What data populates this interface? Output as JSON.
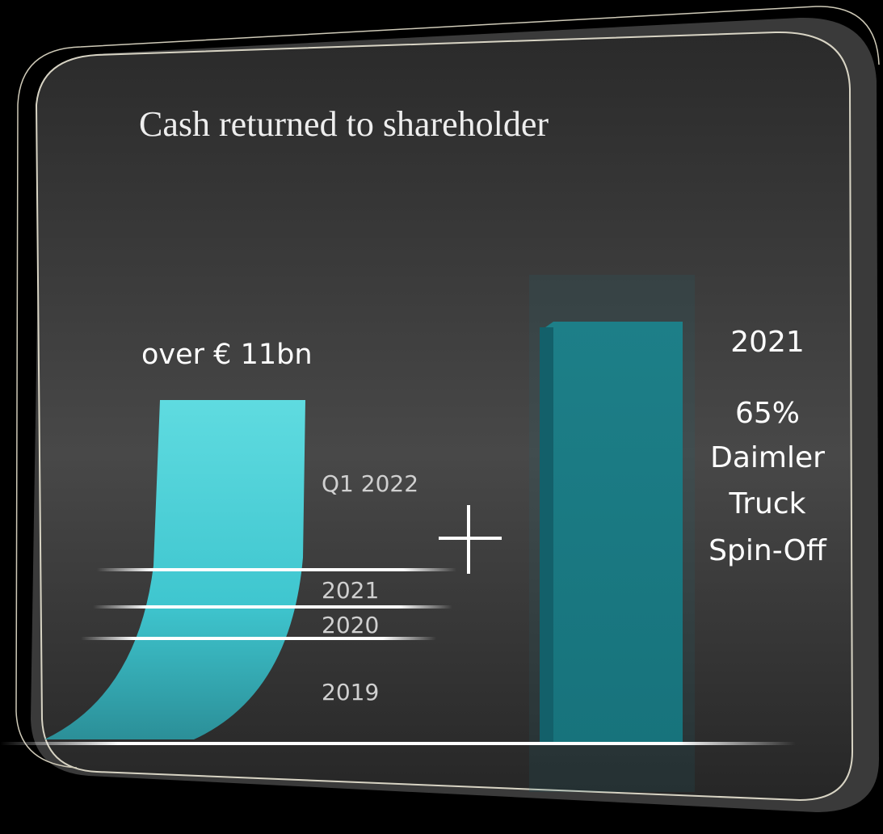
{
  "title": "Cash returned to shareholder",
  "total_label": "over € 11bn",
  "periods": [
    "Q1 2022",
    "2021",
    "2020",
    "2019"
  ],
  "spin_off": {
    "year": "2021",
    "lines": [
      "65%",
      "Daimler",
      "Truck",
      "Spin-Off"
    ]
  }
}
